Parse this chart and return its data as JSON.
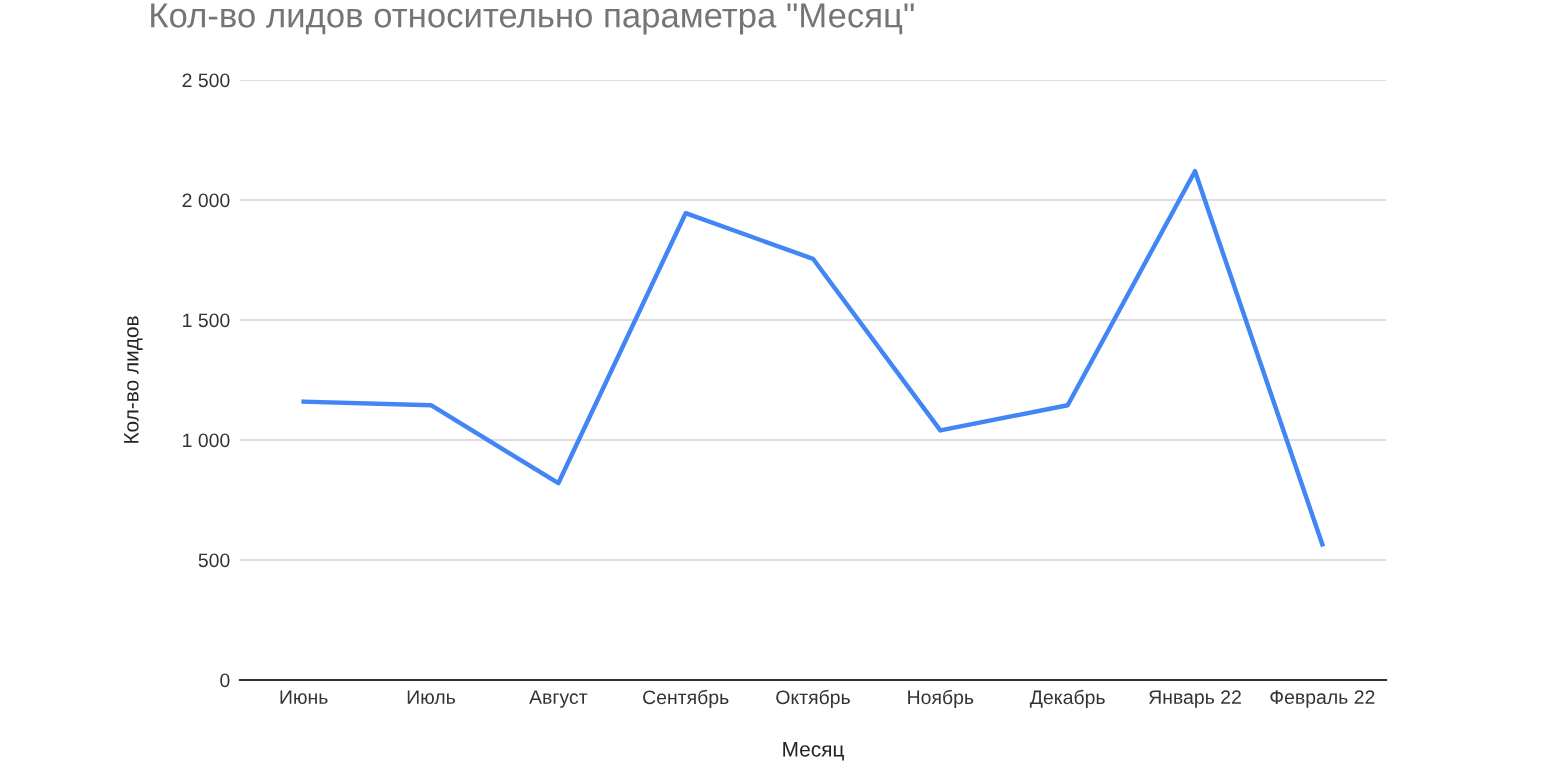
{
  "chart_data": {
    "type": "line",
    "title": "Кол-во лидов относительно параметра \"Месяц\"",
    "xlabel": "Месяц",
    "ylabel": "Кол-во лидов",
    "categories": [
      "Июнь",
      "Июль",
      "Август",
      "Сентябрь",
      "Октябрь",
      "Ноябрь",
      "Декабрь",
      "Январь 22",
      "Февраль 22"
    ],
    "series": [
      {
        "color": "#4285f4",
        "values": [
          1160,
          1145,
          820,
          1945,
          1755,
          1040,
          1145,
          2120,
          565
        ]
      }
    ],
    "ylim": [
      0,
      2500
    ],
    "yticks": [
      {
        "value": 0,
        "label": "0"
      },
      {
        "value": 500,
        "label": "500"
      },
      {
        "value": 1000,
        "label": "1 000"
      },
      {
        "value": 1500,
        "label": "1 500"
      },
      {
        "value": 2000,
        "label": "2 000"
      },
      {
        "value": 2500,
        "label": "2 500"
      }
    ],
    "grid": "y",
    "legend": false,
    "marker": "none",
    "line_style": "solid"
  }
}
